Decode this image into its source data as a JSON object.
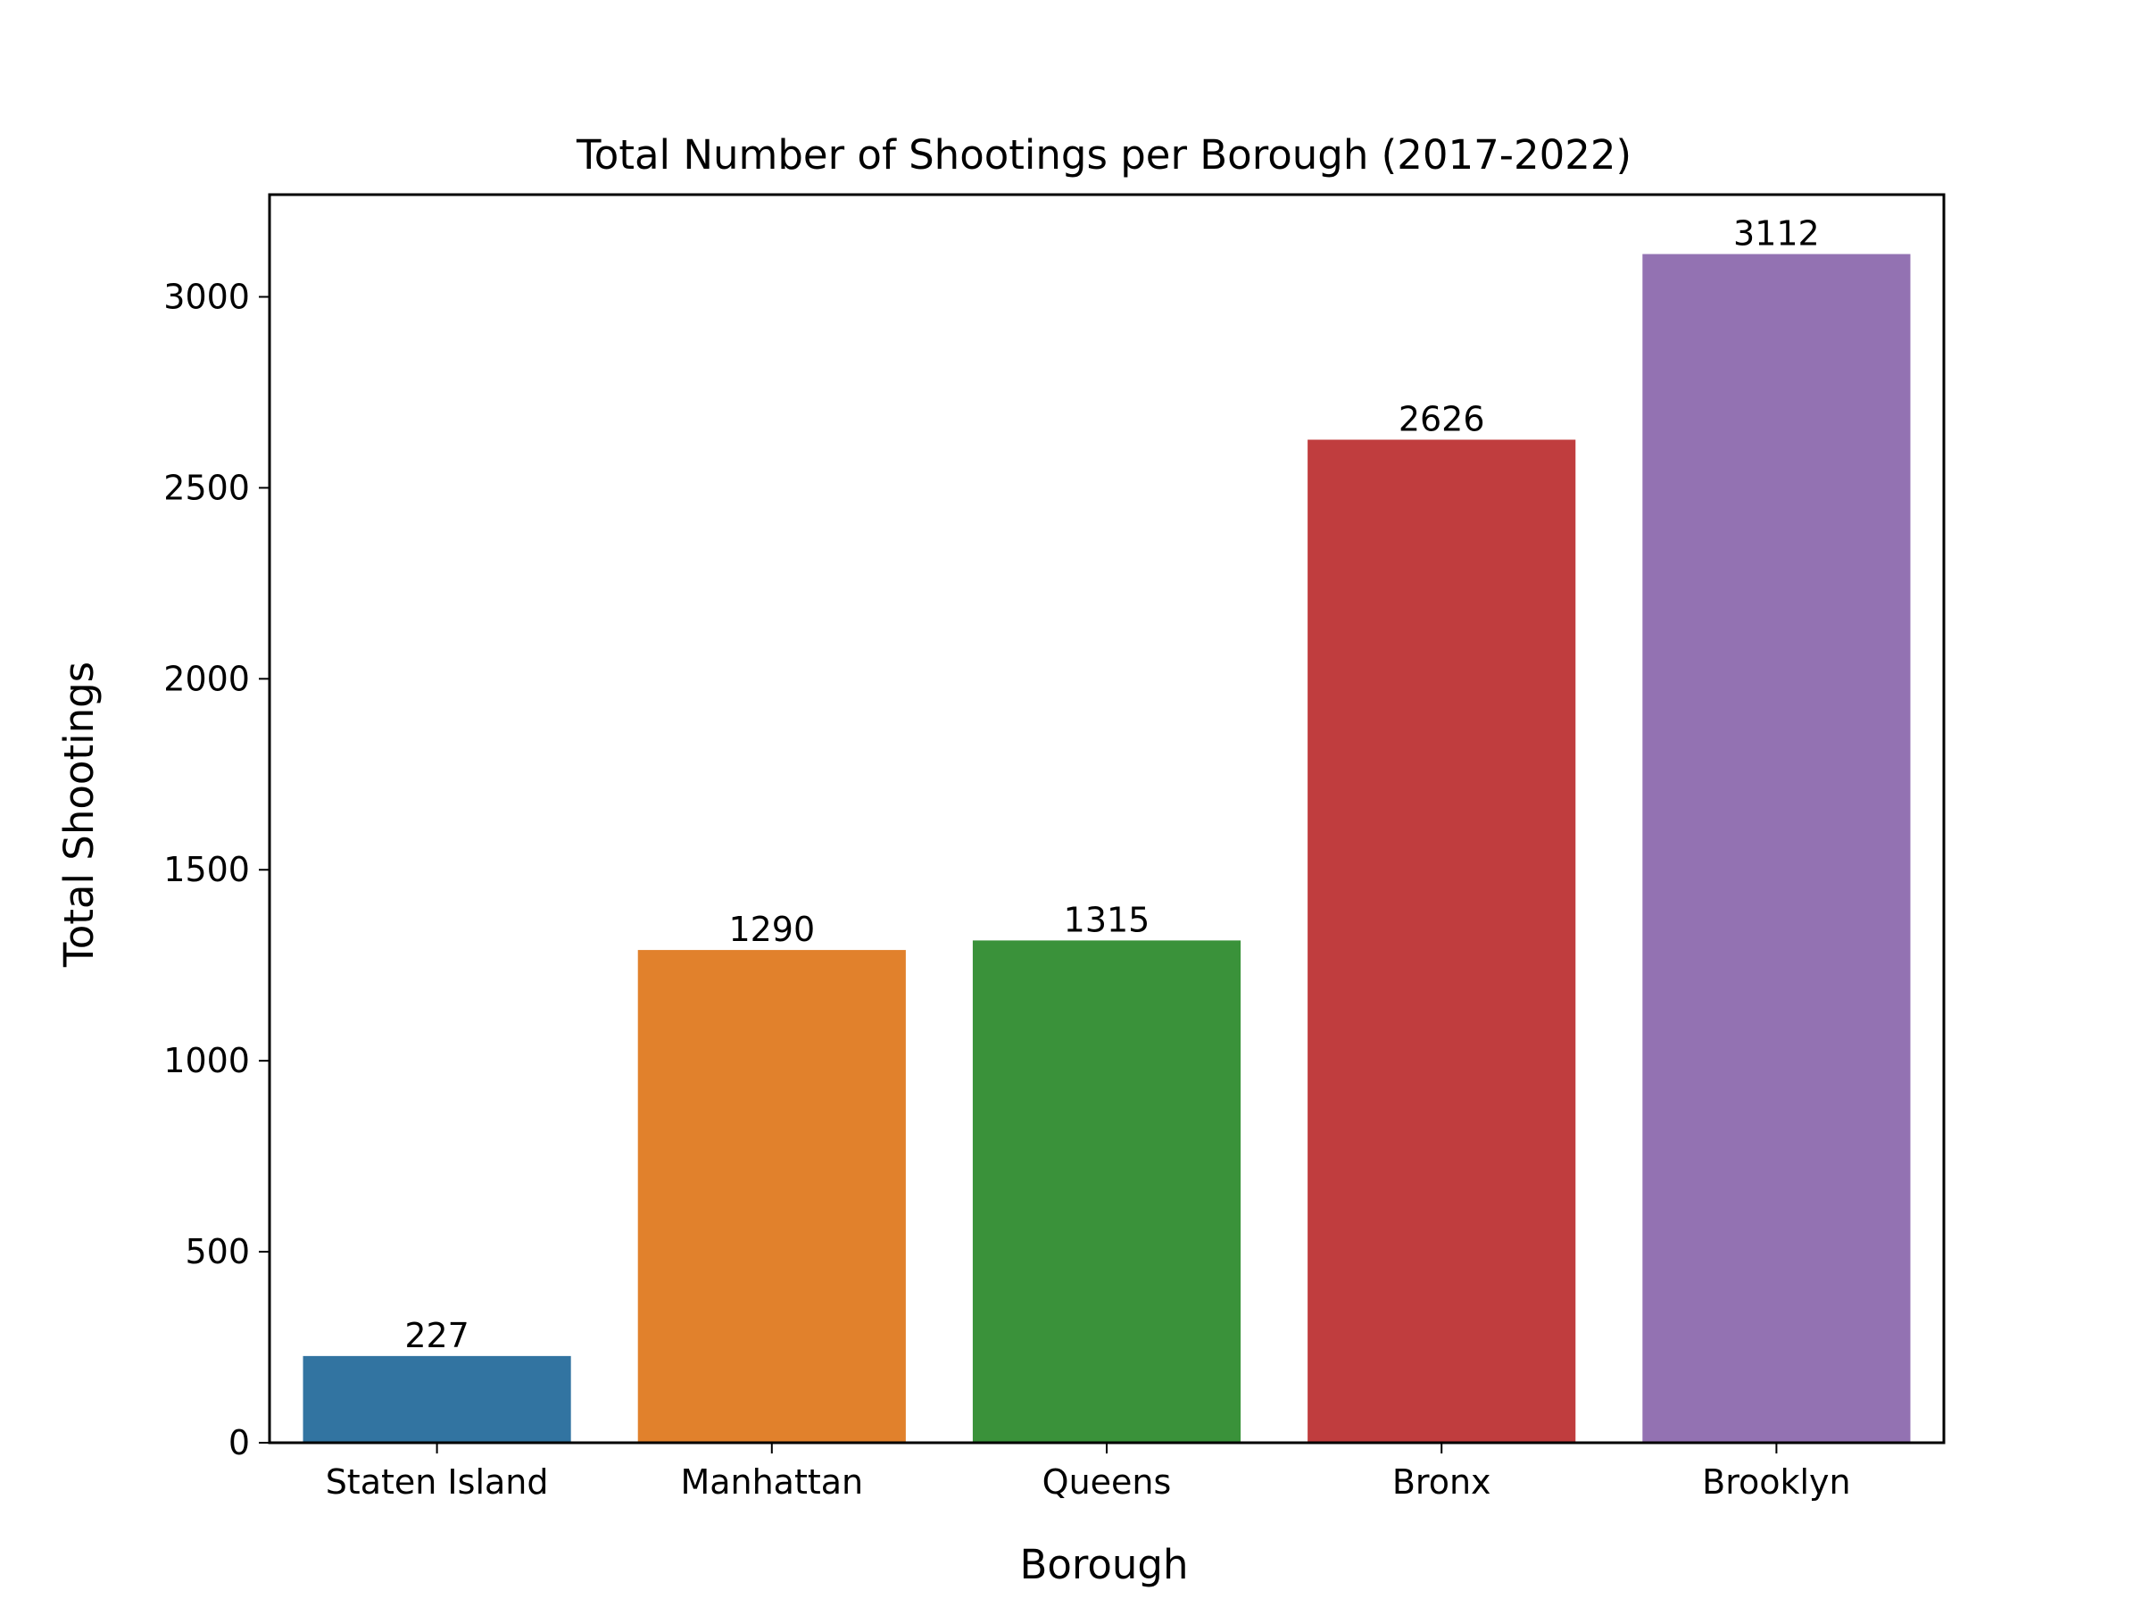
{
  "chart_data": {
    "type": "bar",
    "title": "Total Number of Shootings per Borough (2017-2022)",
    "xlabel": "Borough",
    "ylabel": "Total Shootings",
    "categories": [
      "Staten Island",
      "Manhattan",
      "Queens",
      "Bronx",
      "Brooklyn"
    ],
    "values": [
      227,
      1290,
      1315,
      2626,
      3112
    ],
    "data_labels": [
      "227",
      "1290",
      "1315",
      "2626",
      "3112"
    ],
    "colors": [
      "#3274a1",
      "#e1812c",
      "#3a923a",
      "#c03d3e",
      "#9372b2"
    ],
    "ylim": [
      0,
      3267.6
    ],
    "yticks": [
      0,
      500,
      1000,
      1500,
      2000,
      2500,
      3000
    ],
    "ytick_labels": [
      "0",
      "500",
      "1000",
      "1500",
      "2000",
      "2500",
      "3000"
    ],
    "grid": false,
    "legend": "none"
  }
}
